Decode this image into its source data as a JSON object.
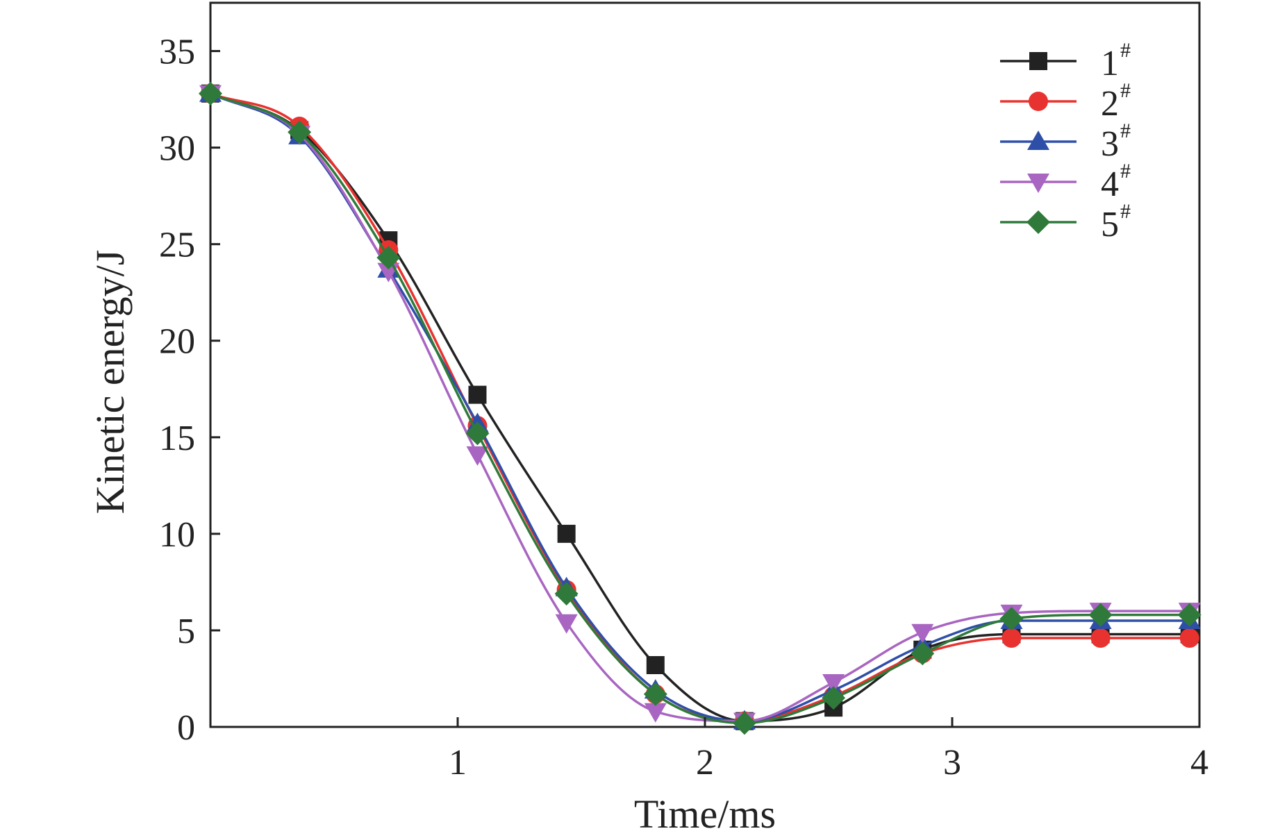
{
  "chart_data": {
    "type": "line",
    "title": "",
    "xlabel": "Time/ms",
    "ylabel": "Kinetic energy/J",
    "xlim": [
      0,
      4
    ],
    "ylim": [
      0,
      37.5
    ],
    "xticks": [
      1,
      2,
      3,
      4
    ],
    "yticks": [
      0,
      5,
      10,
      15,
      20,
      25,
      30,
      35
    ],
    "x_tick_labels": [
      "1",
      "2",
      "3",
      "4"
    ],
    "y_tick_labels": [
      "0",
      "5",
      "10",
      "15",
      "20",
      "25",
      "30",
      "35"
    ],
    "grid": false,
    "legend_position": "top-right",
    "series": [
      {
        "name": "1",
        "sup": "#",
        "color": "#222222",
        "marker": "square",
        "x": [
          0,
          0.36,
          0.72,
          1.08,
          1.44,
          1.8,
          2.16,
          2.52,
          2.88,
          3.24,
          3.6,
          3.96
        ],
        "y": [
          32.8,
          30.9,
          25.2,
          17.2,
          10.0,
          3.2,
          0.3,
          1.0,
          4.0,
          4.8,
          4.8,
          4.8
        ]
      },
      {
        "name": "2",
        "sup": "#",
        "color": "#e8322f",
        "marker": "circle",
        "x": [
          0,
          0.36,
          0.72,
          1.08,
          1.44,
          1.8,
          2.16,
          2.52,
          2.88,
          3.24,
          3.6,
          3.96
        ],
        "y": [
          32.8,
          31.1,
          24.7,
          15.6,
          7.1,
          1.7,
          0.3,
          1.6,
          3.8,
          4.6,
          4.6,
          4.6
        ]
      },
      {
        "name": "3",
        "sup": "#",
        "color": "#2e4fa8",
        "marker": "triangle-up",
        "x": [
          0,
          0.36,
          0.72,
          1.08,
          1.44,
          1.8,
          2.16,
          2.52,
          2.88,
          3.24,
          3.6,
          3.96
        ],
        "y": [
          32.8,
          30.6,
          23.7,
          15.7,
          7.2,
          1.9,
          0.3,
          1.9,
          4.2,
          5.5,
          5.5,
          5.5
        ]
      },
      {
        "name": "4",
        "sup": "#",
        "color": "#a865c1",
        "marker": "triangle-down",
        "x": [
          0,
          0.36,
          0.72,
          1.08,
          1.44,
          1.8,
          2.16,
          2.52,
          2.88,
          3.24,
          3.6,
          3.96
        ],
        "y": [
          32.8,
          30.7,
          23.6,
          14.1,
          5.4,
          0.8,
          0.3,
          2.3,
          4.9,
          5.9,
          6.0,
          6.0
        ]
      },
      {
        "name": "5",
        "sup": "#",
        "color": "#2f7a3a",
        "marker": "diamond",
        "x": [
          0,
          0.36,
          0.72,
          1.08,
          1.44,
          1.8,
          2.16,
          2.52,
          2.88,
          3.24,
          3.6,
          3.96
        ],
        "y": [
          32.8,
          30.8,
          24.3,
          15.2,
          6.9,
          1.7,
          0.2,
          1.5,
          3.8,
          5.6,
          5.8,
          5.8
        ]
      }
    ]
  }
}
